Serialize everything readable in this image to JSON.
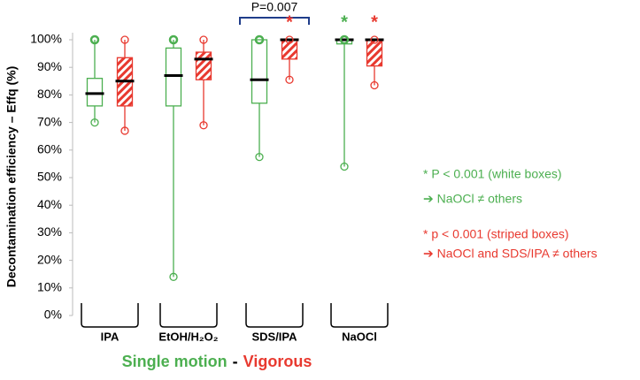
{
  "chart_data": {
    "type": "box",
    "y_label": "Decontamination efficiency – Effq (%)",
    "categories": [
      "IPA",
      "EtOH/H₂O₂",
      "SDS/IPA",
      "NaOCl"
    ],
    "category_brackets": [
      null,
      null,
      "P=0.007",
      null
    ],
    "ylim": [
      0,
      100
    ],
    "yticks": [
      {
        "value": 0,
        "label": "0%"
      },
      {
        "value": 10,
        "label": "10%"
      },
      {
        "value": 20,
        "label": "20%"
      },
      {
        "value": 30,
        "label": "30%"
      },
      {
        "value": 40,
        "label": "40%"
      },
      {
        "value": 50,
        "label": "50%"
      },
      {
        "value": 60,
        "label": "60%"
      },
      {
        "value": 70,
        "label": "70%"
      },
      {
        "value": 80,
        "label": "80%"
      },
      {
        "value": 90,
        "label": "90%"
      },
      {
        "value": 100,
        "label": "100%"
      }
    ],
    "legend_separator": "-",
    "series": [
      {
        "name": "Single motion",
        "color": "#4caf50",
        "hatched": false,
        "markers": [
          null,
          null,
          null,
          "*"
        ],
        "min": [
          70,
          14,
          57.5,
          54
        ],
        "q1": [
          76,
          76,
          77,
          98.5
        ],
        "median": [
          80.5,
          87,
          85.5,
          100
        ],
        "q3": [
          86,
          97,
          100,
          100
        ],
        "max": [
          100,
          100,
          100,
          100
        ]
      },
      {
        "name": "Vigorous",
        "color": "#e8392f",
        "hatched": true,
        "markers": [
          null,
          null,
          "*",
          "*"
        ],
        "min": [
          67,
          69,
          85.5,
          83.5
        ],
        "q1": [
          76,
          85.5,
          93,
          90.5
        ],
        "median": [
          85,
          93,
          100,
          100
        ],
        "q3": [
          93.5,
          95.5,
          100,
          100
        ],
        "max": [
          100,
          100,
          100,
          100
        ]
      }
    ],
    "notes": [
      {
        "text": "* P < 0.001 (white boxes)",
        "color": "#4caf50"
      },
      {
        "text": "➔ NaOCl ≠ others",
        "color": "#4caf50"
      },
      {
        "text": "* p < 0.001 (striped boxes)",
        "color": "#e8392f"
      },
      {
        "text": "➔ NaOCl and SDS/IPA ≠ others",
        "color": "#e8392f"
      }
    ]
  }
}
